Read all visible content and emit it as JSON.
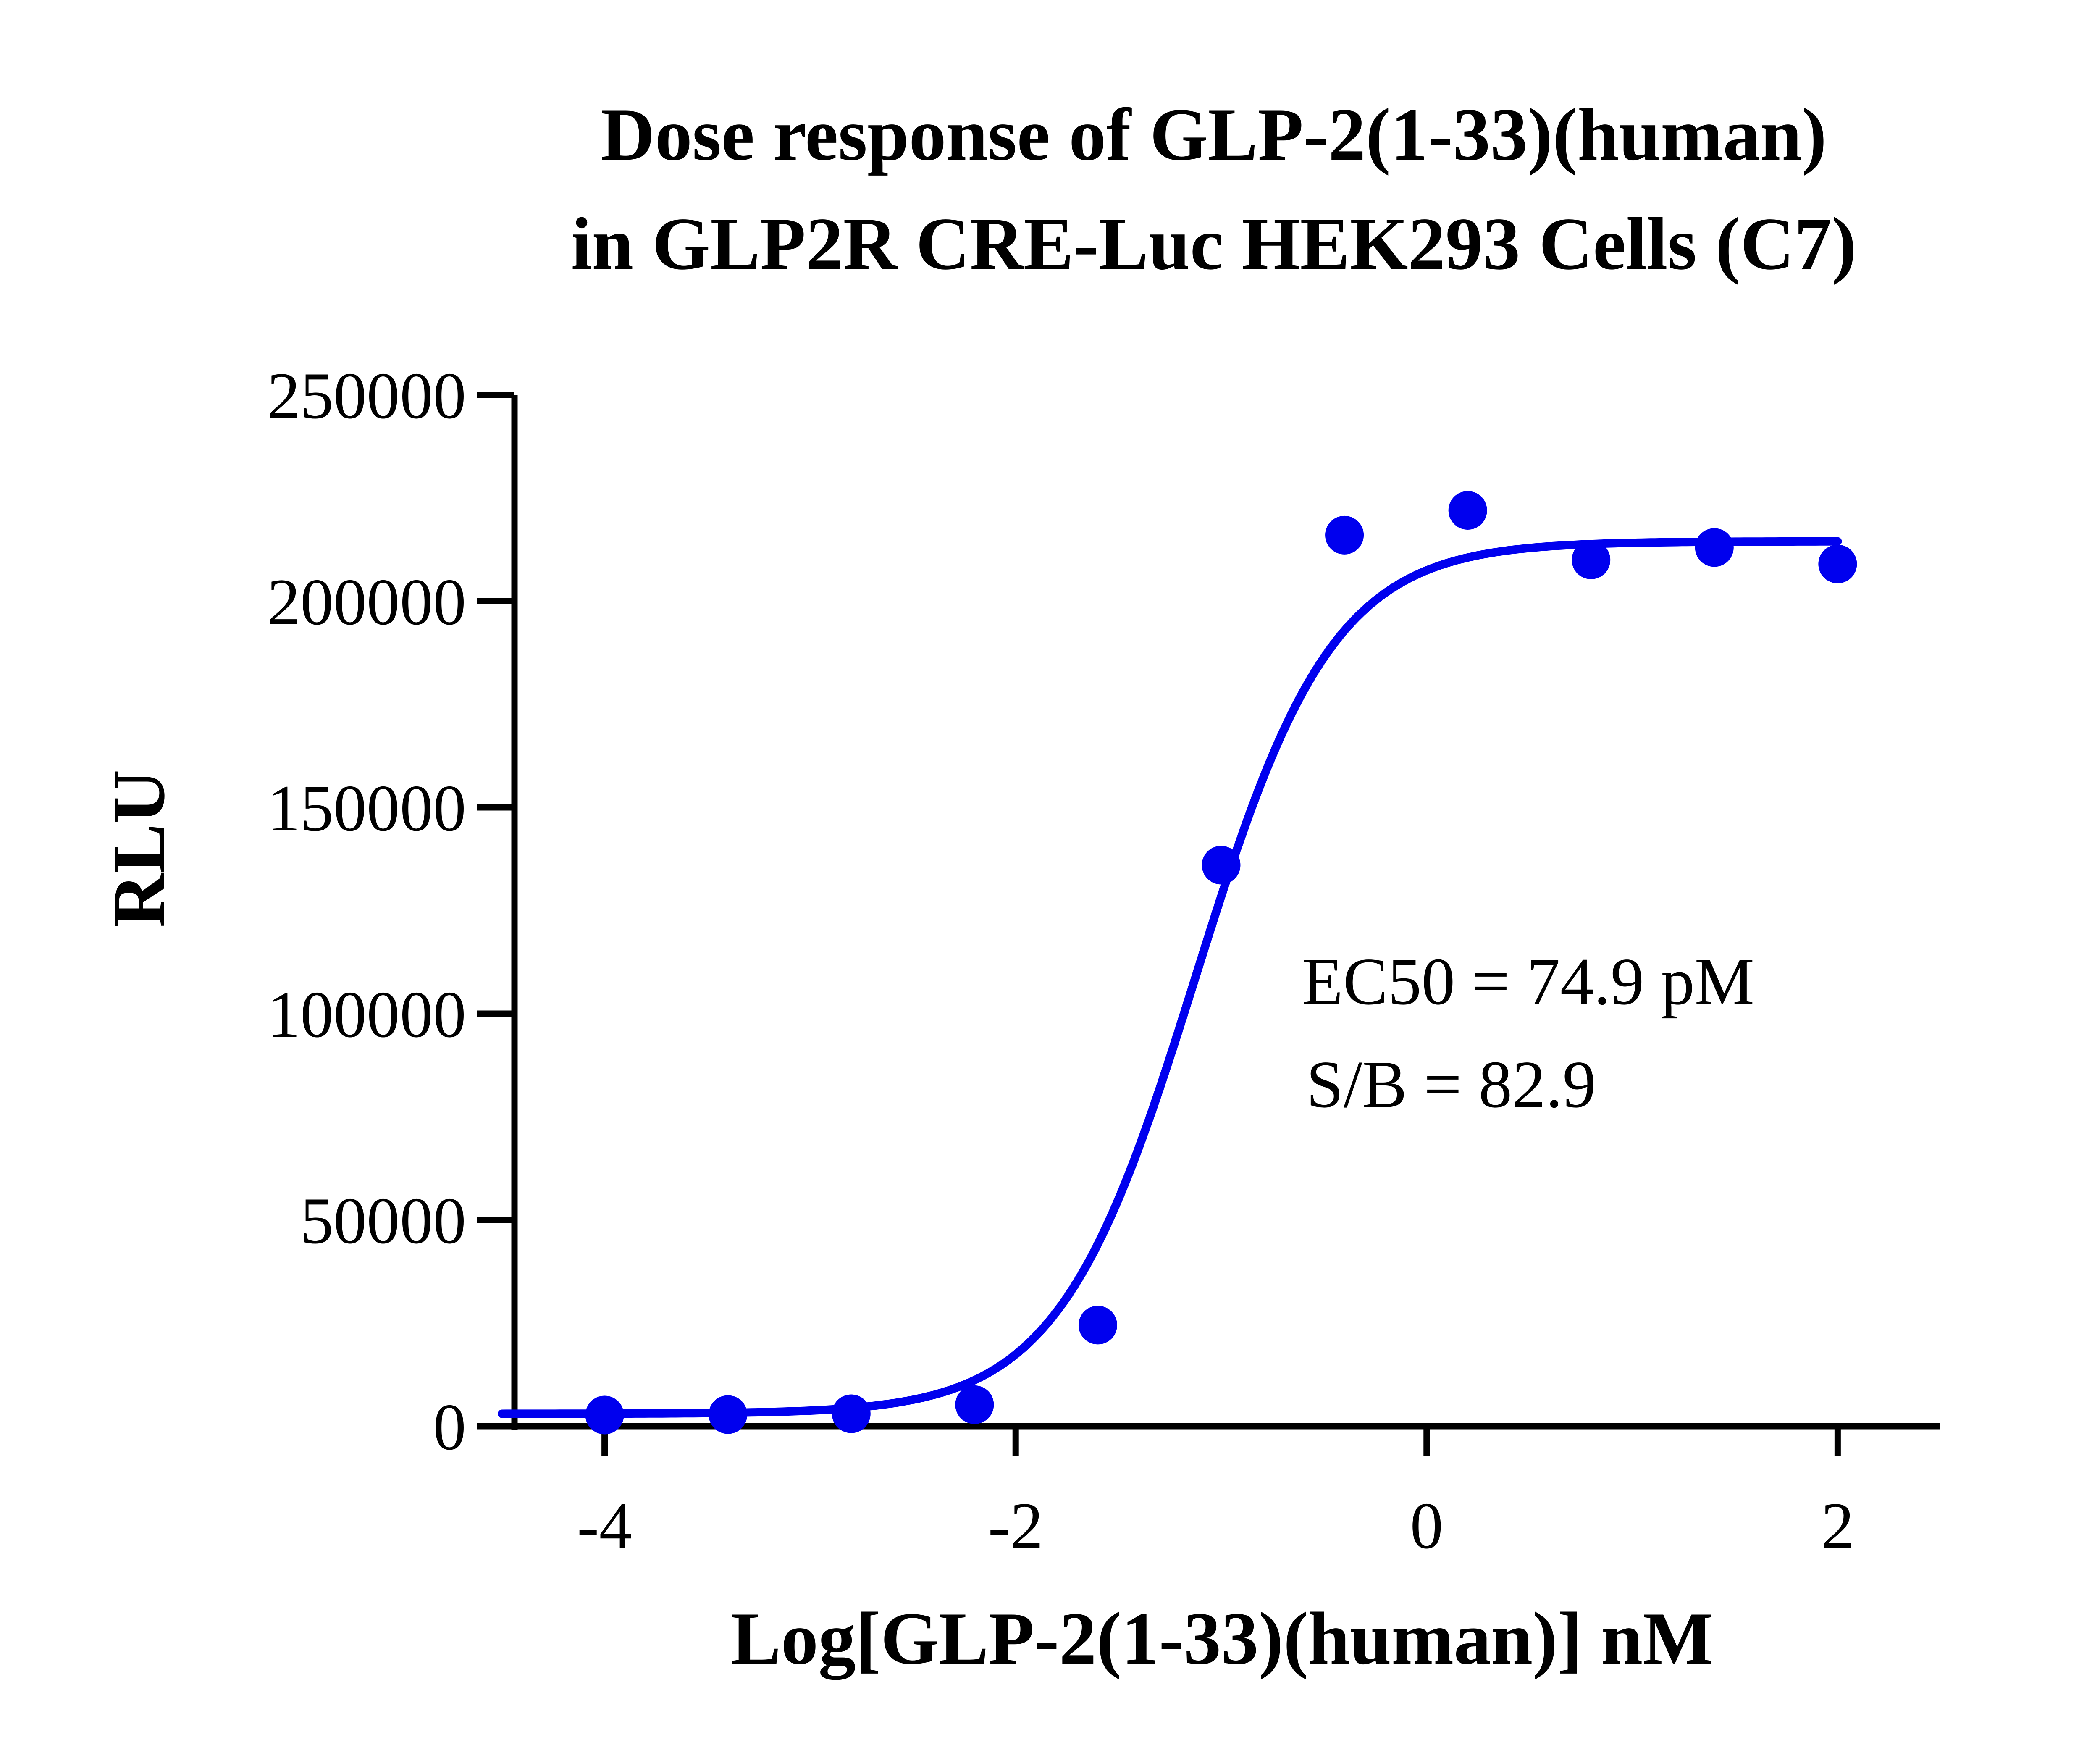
{
  "chart_data": {
    "type": "scatter",
    "title": [
      "Dose response of GLP-2(1-33)(human)",
      "in GLP2R CRE-Luc HEK293 Cells (C7)"
    ],
    "xlabel": "Log[GLP-2(1-33)(human)] nM",
    "ylabel": "RLU",
    "xlim": [
      -4.5,
      2.5
    ],
    "ylim": [
      0,
      250000
    ],
    "x_ticks": [
      -4,
      -2,
      0,
      2
    ],
    "x_tick_labels": [
      "-4",
      "-2",
      "0",
      "2"
    ],
    "y_ticks": [
      0,
      50000,
      100000,
      150000,
      200000,
      250000
    ],
    "y_tick_labels": [
      "0",
      "50000",
      "100000",
      "150000",
      "200000",
      "250000"
    ],
    "grid": false,
    "series": [
      {
        "color": "#0000ee",
        "points": [
          {
            "x": -4.0,
            "y": 2700
          },
          {
            "x": -3.4,
            "y": 2800
          },
          {
            "x": -2.8,
            "y": 3000
          },
          {
            "x": -2.2,
            "y": 5200
          },
          {
            "x": -1.6,
            "y": 24500
          },
          {
            "x": -1.0,
            "y": 136000
          },
          {
            "x": -0.4,
            "y": 216000
          },
          {
            "x": 0.2,
            "y": 222000
          },
          {
            "x": 0.8,
            "y": 210000
          },
          {
            "x": 1.4,
            "y": 213000
          },
          {
            "x": 2.0,
            "y": 209000
          }
        ],
        "fit": {
          "model": "4PL",
          "bottom": 3000,
          "top": 214500,
          "logEC50": -1.1255,
          "hill": 1.3,
          "x_range": [
            -4.5,
            2.0
          ]
        }
      }
    ],
    "annotations": [
      "EC50 = 74.9 pM",
      "S/B = 82.9"
    ]
  }
}
